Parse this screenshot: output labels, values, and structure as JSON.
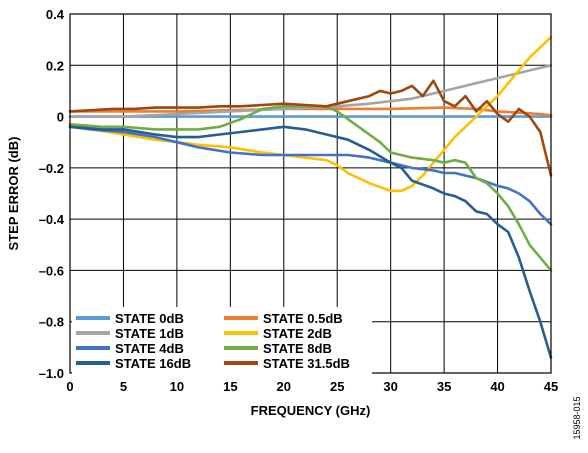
{
  "figure_id": "15958-015",
  "chart_data": {
    "type": "line",
    "xlabel": "FREQUENCY (GHz)",
    "ylabel": "STEP ERROR (dB)",
    "xlim": [
      0,
      45
    ],
    "ylim": [
      -1.0,
      0.4
    ],
    "xticks": [
      0,
      5,
      10,
      15,
      20,
      25,
      30,
      35,
      40,
      45
    ],
    "xtick_labels": [
      "0",
      "5",
      "10",
      "15",
      "20",
      "25",
      "30",
      "35",
      "40",
      "45"
    ],
    "yticks": [
      0.4,
      0.2,
      0,
      -0.2,
      -0.4,
      -0.6,
      -0.8,
      -1.0
    ],
    "ytick_labels": [
      "0.4",
      "0.2",
      "0",
      "–0.2",
      "–0.4",
      "–0.6",
      "–0.8",
      "–1.0"
    ],
    "grid": true,
    "legend_position": "bottom-left",
    "series": [
      {
        "name": "STATE 0dB",
        "color": "#5B9BD5",
        "x": [
          0,
          45
        ],
        "y": [
          0,
          0
        ]
      },
      {
        "name": "STATE 0.5dB",
        "color": "#ED7D31",
        "x": [
          0,
          5,
          10,
          15,
          20,
          25,
          30,
          35,
          38,
          40,
          42,
          44,
          45
        ],
        "y": [
          0.02,
          0.02,
          0.02,
          0.025,
          0.03,
          0.03,
          0.03,
          0.035,
          0.03,
          0.02,
          0.015,
          0.01,
          0.005
        ]
      },
      {
        "name": "STATE 1dB",
        "color": "#A5A5A5",
        "x": [
          0,
          3,
          5,
          10,
          15,
          20,
          25,
          28,
          30,
          32,
          34,
          36,
          38,
          40,
          42,
          44,
          45
        ],
        "y": [
          0.0,
          0.0,
          0.0,
          0.01,
          0.02,
          0.03,
          0.04,
          0.05,
          0.06,
          0.07,
          0.09,
          0.11,
          0.13,
          0.15,
          0.17,
          0.19,
          0.2
        ]
      },
      {
        "name": "STATE 2dB",
        "color": "#FFC000",
        "x": [
          0,
          2,
          5,
          8,
          10,
          12,
          15,
          18,
          20,
          22,
          24,
          25,
          26,
          28,
          30,
          31,
          32,
          33,
          34,
          35,
          36,
          37,
          38,
          39,
          40,
          41,
          42,
          43,
          44,
          45
        ],
        "y": [
          -0.03,
          -0.05,
          -0.07,
          -0.09,
          -0.1,
          -0.11,
          -0.12,
          -0.14,
          -0.15,
          -0.16,
          -0.17,
          -0.19,
          -0.22,
          -0.26,
          -0.29,
          -0.29,
          -0.27,
          -0.23,
          -0.18,
          -0.13,
          -0.08,
          -0.04,
          0.0,
          0.04,
          0.08,
          0.13,
          0.18,
          0.23,
          0.27,
          0.31
        ]
      },
      {
        "name": "STATE 4dB",
        "color": "#4472C4",
        "x": [
          0,
          2,
          5,
          8,
          10,
          12,
          15,
          18,
          20,
          22,
          24,
          26,
          28,
          30,
          32,
          34,
          35,
          36,
          38,
          40,
          41,
          42,
          43,
          44,
          45
        ],
        "y": [
          -0.04,
          -0.05,
          -0.06,
          -0.08,
          -0.1,
          -0.12,
          -0.14,
          -0.15,
          -0.15,
          -0.15,
          -0.15,
          -0.15,
          -0.16,
          -0.18,
          -0.2,
          -0.21,
          -0.22,
          -0.22,
          -0.24,
          -0.27,
          -0.28,
          -0.3,
          -0.33,
          -0.38,
          -0.42
        ]
      },
      {
        "name": "STATE 8dB",
        "color": "#70AD47",
        "x": [
          0,
          3,
          5,
          8,
          10,
          12,
          14,
          16,
          18,
          20,
          22,
          24,
          25,
          27,
          29,
          30,
          32,
          34,
          35,
          36,
          37,
          38,
          39,
          40,
          41,
          42,
          43,
          44,
          45
        ],
        "y": [
          -0.03,
          -0.04,
          -0.04,
          -0.05,
          -0.05,
          -0.05,
          -0.04,
          -0.01,
          0.03,
          0.04,
          0.04,
          0.04,
          0.02,
          -0.04,
          -0.1,
          -0.14,
          -0.16,
          -0.17,
          -0.18,
          -0.17,
          -0.18,
          -0.24,
          -0.26,
          -0.3,
          -0.35,
          -0.42,
          -0.5,
          -0.55,
          -0.6
        ]
      },
      {
        "name": "STATE 16dB",
        "color": "#255E91",
        "x": [
          0,
          3,
          5,
          8,
          10,
          12,
          14,
          16,
          18,
          20,
          22,
          24,
          26,
          28,
          30,
          31,
          32,
          34,
          35,
          36,
          37,
          38,
          39,
          40,
          41,
          42,
          43,
          44,
          45
        ],
        "y": [
          -0.04,
          -0.05,
          -0.05,
          -0.07,
          -0.08,
          -0.08,
          -0.07,
          -0.06,
          -0.05,
          -0.04,
          -0.05,
          -0.07,
          -0.09,
          -0.13,
          -0.18,
          -0.2,
          -0.25,
          -0.28,
          -0.3,
          -0.31,
          -0.33,
          -0.37,
          -0.38,
          -0.42,
          -0.45,
          -0.55,
          -0.68,
          -0.8,
          -0.94
        ]
      },
      {
        "name": "STATE 31.5dB",
        "color": "#9E480E",
        "x": [
          0,
          2,
          4,
          6,
          8,
          10,
          12,
          14,
          16,
          18,
          20,
          22,
          24,
          26,
          28,
          29,
          30,
          31,
          32,
          33,
          34,
          35,
          36,
          37,
          38,
          39,
          40,
          41,
          42,
          43,
          44,
          45
        ],
        "y": [
          0.02,
          0.025,
          0.03,
          0.03,
          0.035,
          0.035,
          0.035,
          0.04,
          0.04,
          0.045,
          0.05,
          0.045,
          0.04,
          0.06,
          0.08,
          0.1,
          0.09,
          0.1,
          0.12,
          0.08,
          0.14,
          0.06,
          0.04,
          0.08,
          0.02,
          0.06,
          0.01,
          -0.02,
          0.03,
          0.0,
          -0.06,
          -0.23
        ]
      }
    ]
  }
}
